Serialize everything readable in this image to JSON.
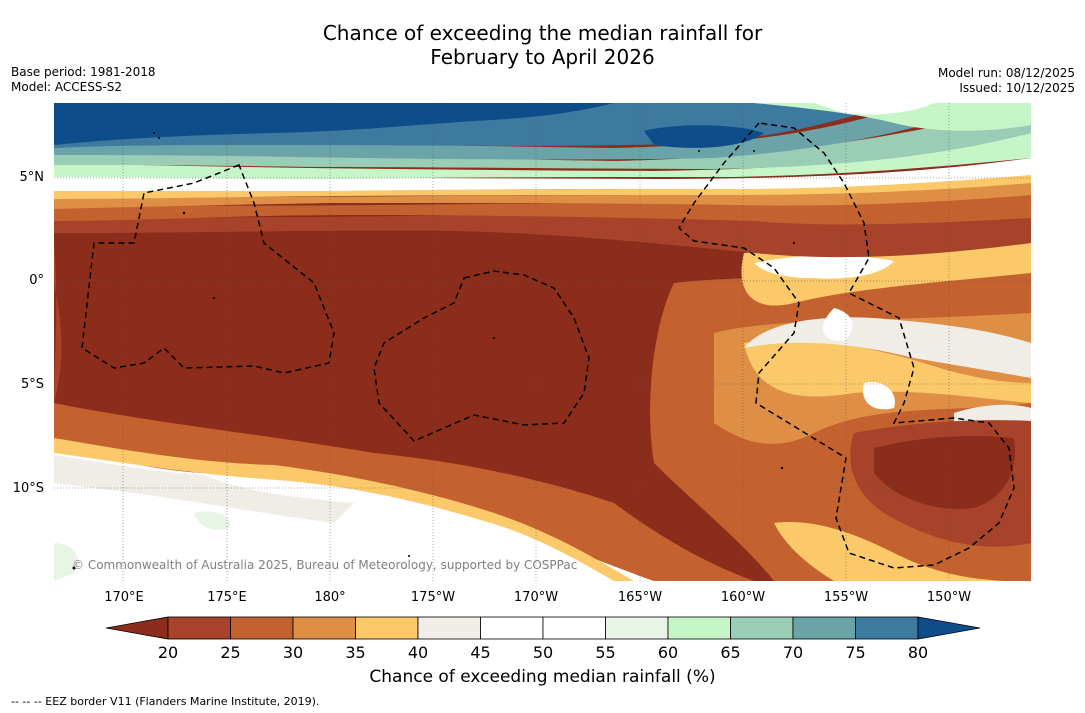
{
  "title_line1": "Chance of exceeding the median rainfall for",
  "title_line2": "February to April 2026",
  "base_period": "Base period: 1981-2018",
  "model": "Model: ACCESS-S2",
  "model_run": "Model run: 08/12/2025",
  "issued": "Issued: 10/12/2025",
  "credit": "© Commonwealth of Australia 2025, Bureau of Meteorology, supported by COSPPac",
  "lat_labels": [
    "5°N",
    "0°",
    "5°S",
    "10°S"
  ],
  "lon_labels": [
    "170°E",
    "175°E",
    "180°",
    "175°W",
    "170°W",
    "165°W",
    "160°W",
    "155°W",
    "150°W"
  ],
  "colorbar": {
    "title": "Chance of exceeding median rainfall (%)",
    "ticks": [
      "20",
      "25",
      "30",
      "35",
      "40",
      "45",
      "50",
      "55",
      "60",
      "65",
      "70",
      "75",
      "80"
    ],
    "under_color": "#8c2d1b",
    "over_color": "#0f4c8a",
    "colors": [
      "#a6432a",
      "#c4622f",
      "#df8f45",
      "#fbc86a",
      "#f0ece6",
      "#ffffff",
      "#ffffff",
      "#e8f5e6",
      "#c6f5c8",
      "#9acdb6",
      "#6aa3a8",
      "#3e7a9f"
    ]
  },
  "legend": "--  --  -- EEZ border V11 (Flanders Marine Institute, 2019).",
  "icons": [
    "map-raster"
  ]
}
